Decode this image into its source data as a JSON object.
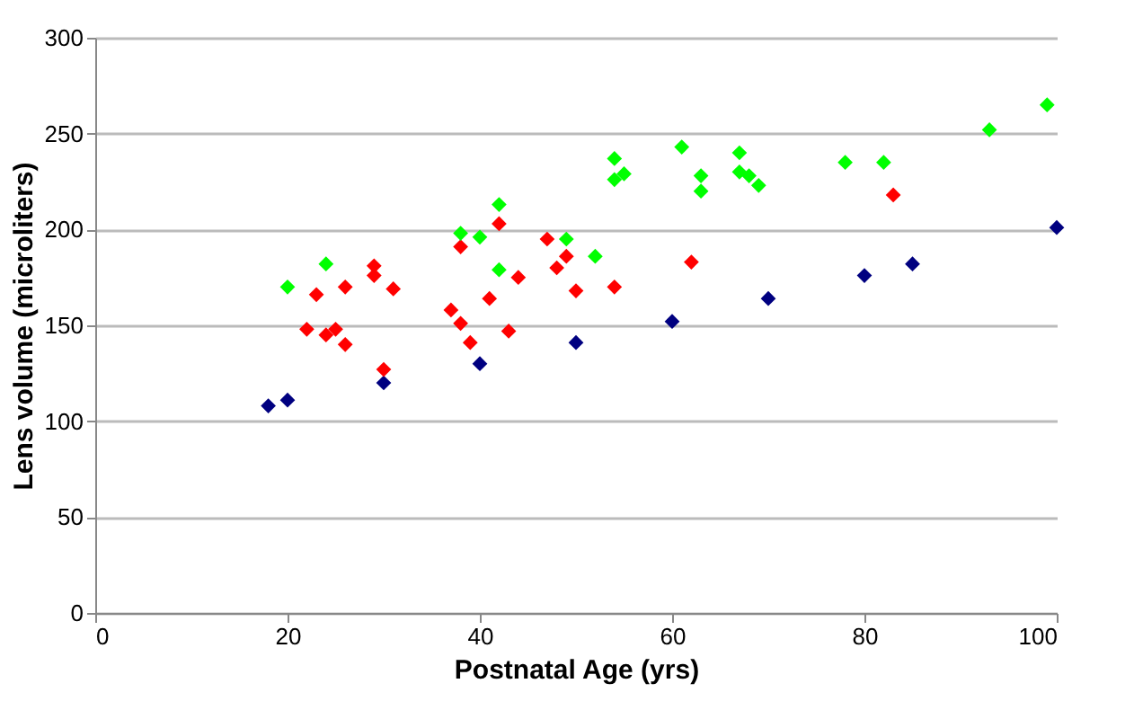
{
  "chart_data": {
    "type": "scatter",
    "xlabel": "Postnatal Age (yrs)",
    "ylabel": "Lens volume (microliters)",
    "xlim": [
      0,
      100
    ],
    "xticks": [
      0,
      20,
      40,
      60,
      80,
      100
    ],
    "ylim": [
      0,
      300
    ],
    "yticks": [
      0,
      50,
      100,
      150,
      200,
      250,
      300
    ],
    "grid": "y",
    "legend": false,
    "marker": "diamond",
    "series": [
      {
        "color": "#000080",
        "x": [
          18,
          20,
          30,
          40,
          50,
          60,
          70,
          80,
          85,
          100
        ],
        "values": [
          108,
          111,
          120,
          130,
          141,
          152,
          164,
          176,
          182,
          201
        ]
      },
      {
        "color": "#ff0000",
        "x": [
          22,
          23,
          24,
          25,
          26,
          26,
          29,
          29,
          30,
          31,
          37,
          38,
          38,
          39,
          41,
          42,
          43,
          44,
          47,
          48,
          49,
          50,
          54,
          62,
          83
        ],
        "values": [
          148,
          166,
          145,
          148,
          140,
          170,
          181,
          176,
          127,
          169,
          158,
          151,
          191,
          141,
          164,
          203,
          147,
          175,
          195,
          180,
          186,
          168,
          170,
          183,
          218
        ]
      },
      {
        "color": "#00ff00",
        "x": [
          20,
          24,
          38,
          40,
          42,
          42,
          49,
          52,
          54,
          54,
          55,
          61,
          63,
          63,
          67,
          67,
          68,
          69,
          78,
          82,
          93,
          99
        ],
        "values": [
          170,
          182,
          198,
          196,
          213,
          179,
          195,
          186,
          237,
          226,
          229,
          243,
          228,
          220,
          240,
          230,
          228,
          223,
          235,
          235,
          252,
          265
        ]
      }
    ]
  }
}
